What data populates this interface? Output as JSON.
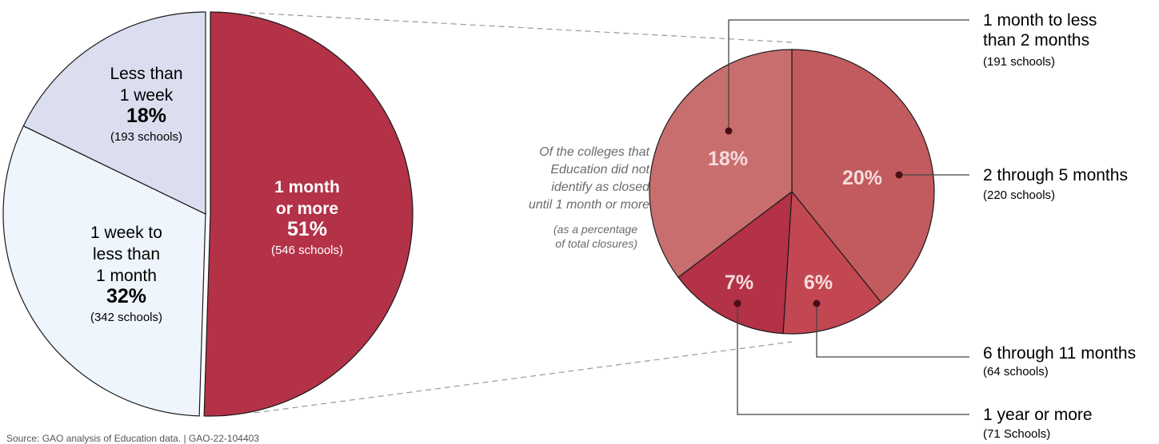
{
  "chart_data": [
    {
      "type": "pie",
      "title": "",
      "slices": [
        {
          "lines": [
            "1 month",
            "or more"
          ],
          "percent_label": "51%",
          "count_label": "(546 schools)",
          "value": 51,
          "color": "#b33248",
          "text_color": "#ffffff"
        },
        {
          "lines": [
            "1 week to",
            "less than",
            "1 month"
          ],
          "percent_label": "32%",
          "count_label": "(342 schools)",
          "value": 32,
          "color": "#eef5fd",
          "text_color": "#000000"
        },
        {
          "lines": [
            "Less than",
            "1 week"
          ],
          "percent_label": "18%",
          "count_label": "(193 schools)",
          "value": 18,
          "color": "#dadeef",
          "text_color": "#000000"
        }
      ]
    },
    {
      "type": "pie",
      "title": "",
      "intro": [
        "Of the colleges that",
        "Education did not",
        "identify as closed",
        "until 1 month or more"
      ],
      "intro_note": [
        "(as a percentage",
        "of total closures)"
      ],
      "slices": [
        {
          "percent_label": "20%",
          "value": 20,
          "label": "2 through 5 months",
          "count_label": "(220 schools)",
          "color": "#c25b5f"
        },
        {
          "percent_label": "6%",
          "value": 6,
          "label": "6 through 11 months",
          "count_label": "(64 schools)",
          "color": "#c24752"
        },
        {
          "percent_label": "7%",
          "value": 7,
          "label": "1 year or more",
          "count_label": "(71 Schools)",
          "color": "#b33248"
        },
        {
          "percent_label": "18%",
          "value": 18,
          "label_lines": [
            "1 month to less",
            "than 2 months"
          ],
          "count_label": "(191 schools)",
          "color": "#c96e6e"
        }
      ]
    }
  ],
  "source": "Source: GAO analysis of Education data.  |  GAO-22-104403"
}
